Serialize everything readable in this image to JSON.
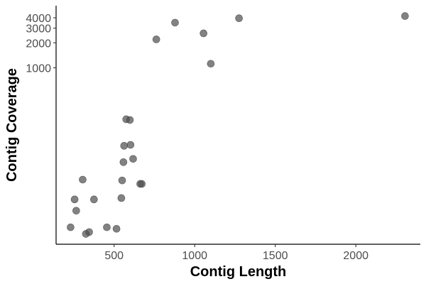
{
  "chart_data": {
    "type": "scatter",
    "xlabel": "Contig Length",
    "ylabel": "Contig Coverage",
    "xlim": [
      140,
      2400
    ],
    "ylim": [
      7.5,
      5600
    ],
    "yscale": "log10",
    "xticks": [
      500,
      1000,
      1500,
      2000
    ],
    "yticks": [
      1000,
      2000,
      3000,
      4000
    ],
    "xtick_labels": [
      "500",
      "1000",
      "1500",
      "2000"
    ],
    "ytick_labels": [
      "1000",
      "2000",
      "3000",
      "4000"
    ],
    "grid": false,
    "legend": "none",
    "point_color": "#4d4d4d",
    "point_opacity": 0.7,
    "points": [
      {
        "x": 230,
        "y": 12
      },
      {
        "x": 255,
        "y": 26
      },
      {
        "x": 265,
        "y": 19
      },
      {
        "x": 305,
        "y": 45
      },
      {
        "x": 325,
        "y": 10
      },
      {
        "x": 345,
        "y": 10.5
      },
      {
        "x": 375,
        "y": 26
      },
      {
        "x": 455,
        "y": 12
      },
      {
        "x": 515,
        "y": 11.5
      },
      {
        "x": 545,
        "y": 27
      },
      {
        "x": 550,
        "y": 44
      },
      {
        "x": 558,
        "y": 73
      },
      {
        "x": 562,
        "y": 115
      },
      {
        "x": 575,
        "y": 240
      },
      {
        "x": 598,
        "y": 235
      },
      {
        "x": 602,
        "y": 118
      },
      {
        "x": 618,
        "y": 80
      },
      {
        "x": 662,
        "y": 40
      },
      {
        "x": 672,
        "y": 40
      },
      {
        "x": 762,
        "y": 2200
      },
      {
        "x": 878,
        "y": 3500
      },
      {
        "x": 1055,
        "y": 2600
      },
      {
        "x": 1100,
        "y": 1120
      },
      {
        "x": 1275,
        "y": 3950
      },
      {
        "x": 2305,
        "y": 4200
      }
    ]
  }
}
